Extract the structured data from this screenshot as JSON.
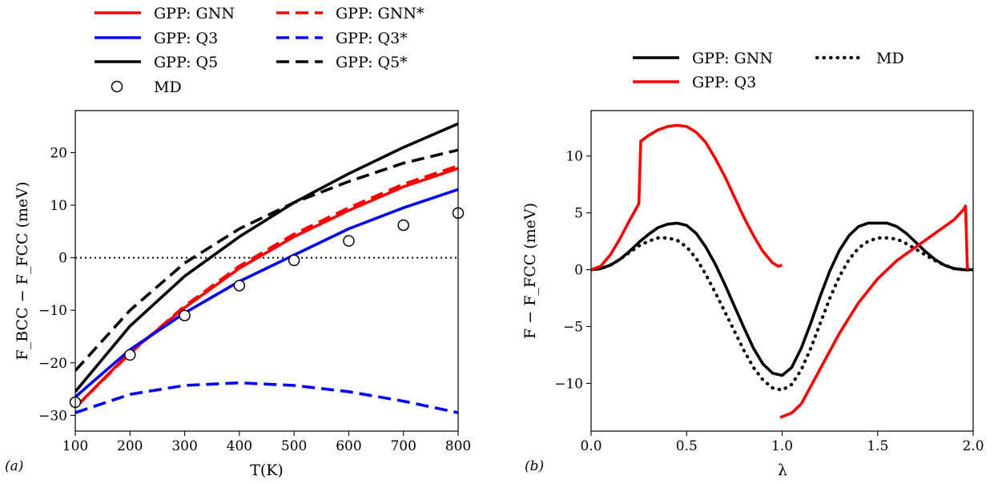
{
  "chart_data": [
    {
      "type": "line",
      "panel_label": "(a)",
      "xlabel": "T(K)",
      "ylabel": "F_BCC − F_FCC (meV)",
      "xlim": [
        100,
        800
      ],
      "ylim": [
        -33,
        28
      ],
      "xticks": [
        100,
        200,
        300,
        400,
        500,
        600,
        700,
        800
      ],
      "yticks": [
        -30,
        -20,
        -10,
        0,
        10,
        20
      ],
      "legend_position": "above",
      "reference_line": {
        "y": 0,
        "style": "dotted"
      },
      "series": [
        {
          "name": "GPP: GNN",
          "color": "#ff0000",
          "dash": "solid",
          "x": [
            100,
            200,
            300,
            400,
            500,
            600,
            700,
            800
          ],
          "y": [
            -28.5,
            -18.0,
            -9.5,
            -2.0,
            4.0,
            9.0,
            13.5,
            17.0
          ]
        },
        {
          "name": "GPP: GNN*",
          "color": "#ff0000",
          "dash": "dashed",
          "x": [
            100,
            200,
            300,
            400,
            500,
            600,
            700,
            800
          ],
          "y": [
            -28.5,
            -18.2,
            -9.2,
            -1.6,
            4.5,
            9.5,
            14.0,
            17.5
          ]
        },
        {
          "name": "GPP: Q3",
          "color": "#0000ff",
          "dash": "solid",
          "x": [
            100,
            200,
            300,
            400,
            500,
            600,
            700,
            800
          ],
          "y": [
            -26.5,
            -17.5,
            -10.5,
            -4.5,
            0.5,
            5.5,
            9.5,
            13.0
          ]
        },
        {
          "name": "GPP: Q3*",
          "color": "#0000ff",
          "dash": "dashed",
          "x": [
            100,
            200,
            300,
            400,
            500,
            600,
            700,
            800
          ],
          "y": [
            -29.5,
            -26.0,
            -24.3,
            -23.8,
            -24.3,
            -25.5,
            -27.3,
            -29.5
          ]
        },
        {
          "name": "GPP: Q5",
          "color": "#000000",
          "dash": "solid",
          "x": [
            100,
            200,
            300,
            400,
            500,
            600,
            700,
            800
          ],
          "y": [
            -25.5,
            -13.0,
            -3.5,
            4.0,
            10.5,
            16.0,
            21.0,
            25.5
          ]
        },
        {
          "name": "GPP: Q5*",
          "color": "#000000",
          "dash": "dashed",
          "x": [
            100,
            200,
            300,
            400,
            500,
            600,
            700,
            800
          ],
          "y": [
            -21.5,
            -10.0,
            -1.0,
            5.5,
            10.5,
            14.5,
            18.0,
            20.5
          ]
        },
        {
          "name": "MD",
          "color": "#000000",
          "marker": "circle",
          "x": [
            100,
            200,
            300,
            400,
            500,
            600,
            700,
            800
          ],
          "y": [
            -27.5,
            -18.5,
            -11.0,
            -5.3,
            -0.5,
            3.2,
            6.2,
            8.5
          ]
        }
      ]
    },
    {
      "type": "line",
      "panel_label": "(b)",
      "xlabel": "λ",
      "ylabel": "F − F_FCC (meV)",
      "xlim": [
        0.0,
        2.0
      ],
      "ylim": [
        -14.2,
        14.0
      ],
      "xticks": [
        0.0,
        0.5,
        1.0,
        1.5,
        2.0
      ],
      "yticks": [
        -10,
        -5,
        0,
        5,
        10
      ],
      "legend_position": "above",
      "series": [
        {
          "name": "GPP: GNN",
          "color": "#000000",
          "dash": "solid",
          "x": [
            0.0,
            0.05,
            0.1,
            0.15,
            0.2,
            0.25,
            0.3,
            0.35,
            0.4,
            0.45,
            0.5,
            0.55,
            0.6,
            0.65,
            0.7,
            0.75,
            0.8,
            0.85,
            0.9,
            0.95,
            1.0,
            1.05,
            1.1,
            1.15,
            1.2,
            1.25,
            1.3,
            1.35,
            1.4,
            1.45,
            1.5,
            1.55,
            1.6,
            1.65,
            1.7,
            1.75,
            1.8,
            1.85,
            1.9,
            1.95,
            2.0
          ],
          "y": [
            0.0,
            0.1,
            0.4,
            0.9,
            1.6,
            2.4,
            3.1,
            3.7,
            4.0,
            4.1,
            3.9,
            3.2,
            2.0,
            0.5,
            -1.3,
            -3.2,
            -5.1,
            -6.9,
            -8.3,
            -9.1,
            -9.3,
            -8.6,
            -6.9,
            -4.7,
            -2.3,
            -0.1,
            1.7,
            3.0,
            3.8,
            4.1,
            4.1,
            4.1,
            3.8,
            3.2,
            2.4,
            1.6,
            0.9,
            0.4,
            0.1,
            0.0,
            0.0
          ]
        },
        {
          "name": "MD",
          "color": "#000000",
          "dash": "dotted",
          "x": [
            0.0,
            0.05,
            0.1,
            0.15,
            0.2,
            0.25,
            0.3,
            0.35,
            0.4,
            0.45,
            0.5,
            0.55,
            0.6,
            0.65,
            0.7,
            0.75,
            0.8,
            0.85,
            0.9,
            0.95,
            1.0,
            1.05,
            1.1,
            1.15,
            1.2,
            1.25,
            1.3,
            1.35,
            1.4,
            1.45,
            1.5,
            1.55,
            1.6,
            1.65,
            1.7,
            1.75,
            1.8,
            1.85,
            1.9,
            1.95,
            2.0
          ],
          "y": [
            0.0,
            0.1,
            0.4,
            0.9,
            1.5,
            2.1,
            2.5,
            2.8,
            2.8,
            2.6,
            2.0,
            1.0,
            -0.4,
            -2.0,
            -3.7,
            -5.4,
            -7.1,
            -8.6,
            -9.7,
            -10.4,
            -10.6,
            -10.1,
            -8.8,
            -6.9,
            -4.7,
            -2.5,
            -0.6,
            0.9,
            1.9,
            2.5,
            2.8,
            2.8,
            2.7,
            2.3,
            1.8,
            1.3,
            0.8,
            0.4,
            0.1,
            0.0,
            0.0
          ]
        },
        {
          "name": "GPP: Q3",
          "color": "#ff0000",
          "dash": "solid",
          "x": [
            0.0,
            0.05,
            0.1,
            0.15,
            0.2,
            0.24,
            0.25,
            0.26,
            0.3,
            0.35,
            0.4,
            0.45,
            0.5,
            0.55,
            0.6,
            0.65,
            0.7,
            0.75,
            0.8,
            0.85,
            0.9,
            0.95,
            0.98,
            1.0,
            null,
            0.99,
            1.05,
            1.1,
            1.2,
            1.3,
            1.4,
            1.5,
            1.6,
            1.7,
            1.8,
            1.9,
            1.95,
            1.96,
            1.97
          ],
          "y": [
            0.0,
            0.3,
            1.3,
            2.7,
            4.3,
            5.5,
            5.8,
            11.3,
            11.8,
            12.3,
            12.6,
            12.7,
            12.6,
            12.1,
            11.2,
            9.8,
            8.2,
            6.4,
            4.6,
            3.0,
            1.6,
            0.6,
            0.3,
            0.4,
            null,
            -13.0,
            -12.6,
            -11.8,
            -8.7,
            -5.6,
            -2.9,
            -0.8,
            0.8,
            2.0,
            3.2,
            4.4,
            5.3,
            5.6,
            0.0
          ]
        }
      ]
    }
  ]
}
